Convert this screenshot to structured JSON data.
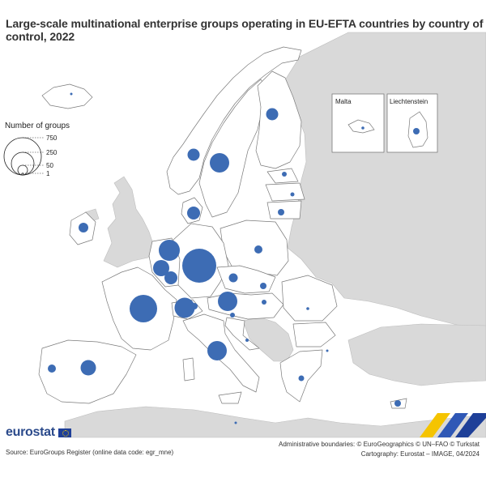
{
  "title": "Large-scale multinational enterprise groups operating in EU-EFTA countries by country of control, 2022",
  "legend": {
    "title": "Number of groups",
    "values": [
      "750",
      "250",
      "50",
      "1"
    ]
  },
  "insets": {
    "malta": "Malta",
    "liechtenstein": "Liechtenstein"
  },
  "logo_text": "eurostat",
  "source": "Source: EuroGroups Register (online data code: egr_mne)",
  "credits": {
    "line1": "Administrative boundaries: © EuroGeographics © UN–FAO © Turkstat",
    "line2": "Cartography: Eurostat – IMAGE, 04/2024"
  },
  "colors": {
    "bubble": "#3d6cb4",
    "eu_land": "#ffffff",
    "other_land": "#d9d9d9",
    "sea": "#ffffff",
    "border": "#7a7a7a"
  },
  "map_data": {
    "type": "proportional-symbol",
    "value_shown_by": "bubble area",
    "legend_reference_values": [
      750,
      250,
      50,
      1
    ]
  }
}
